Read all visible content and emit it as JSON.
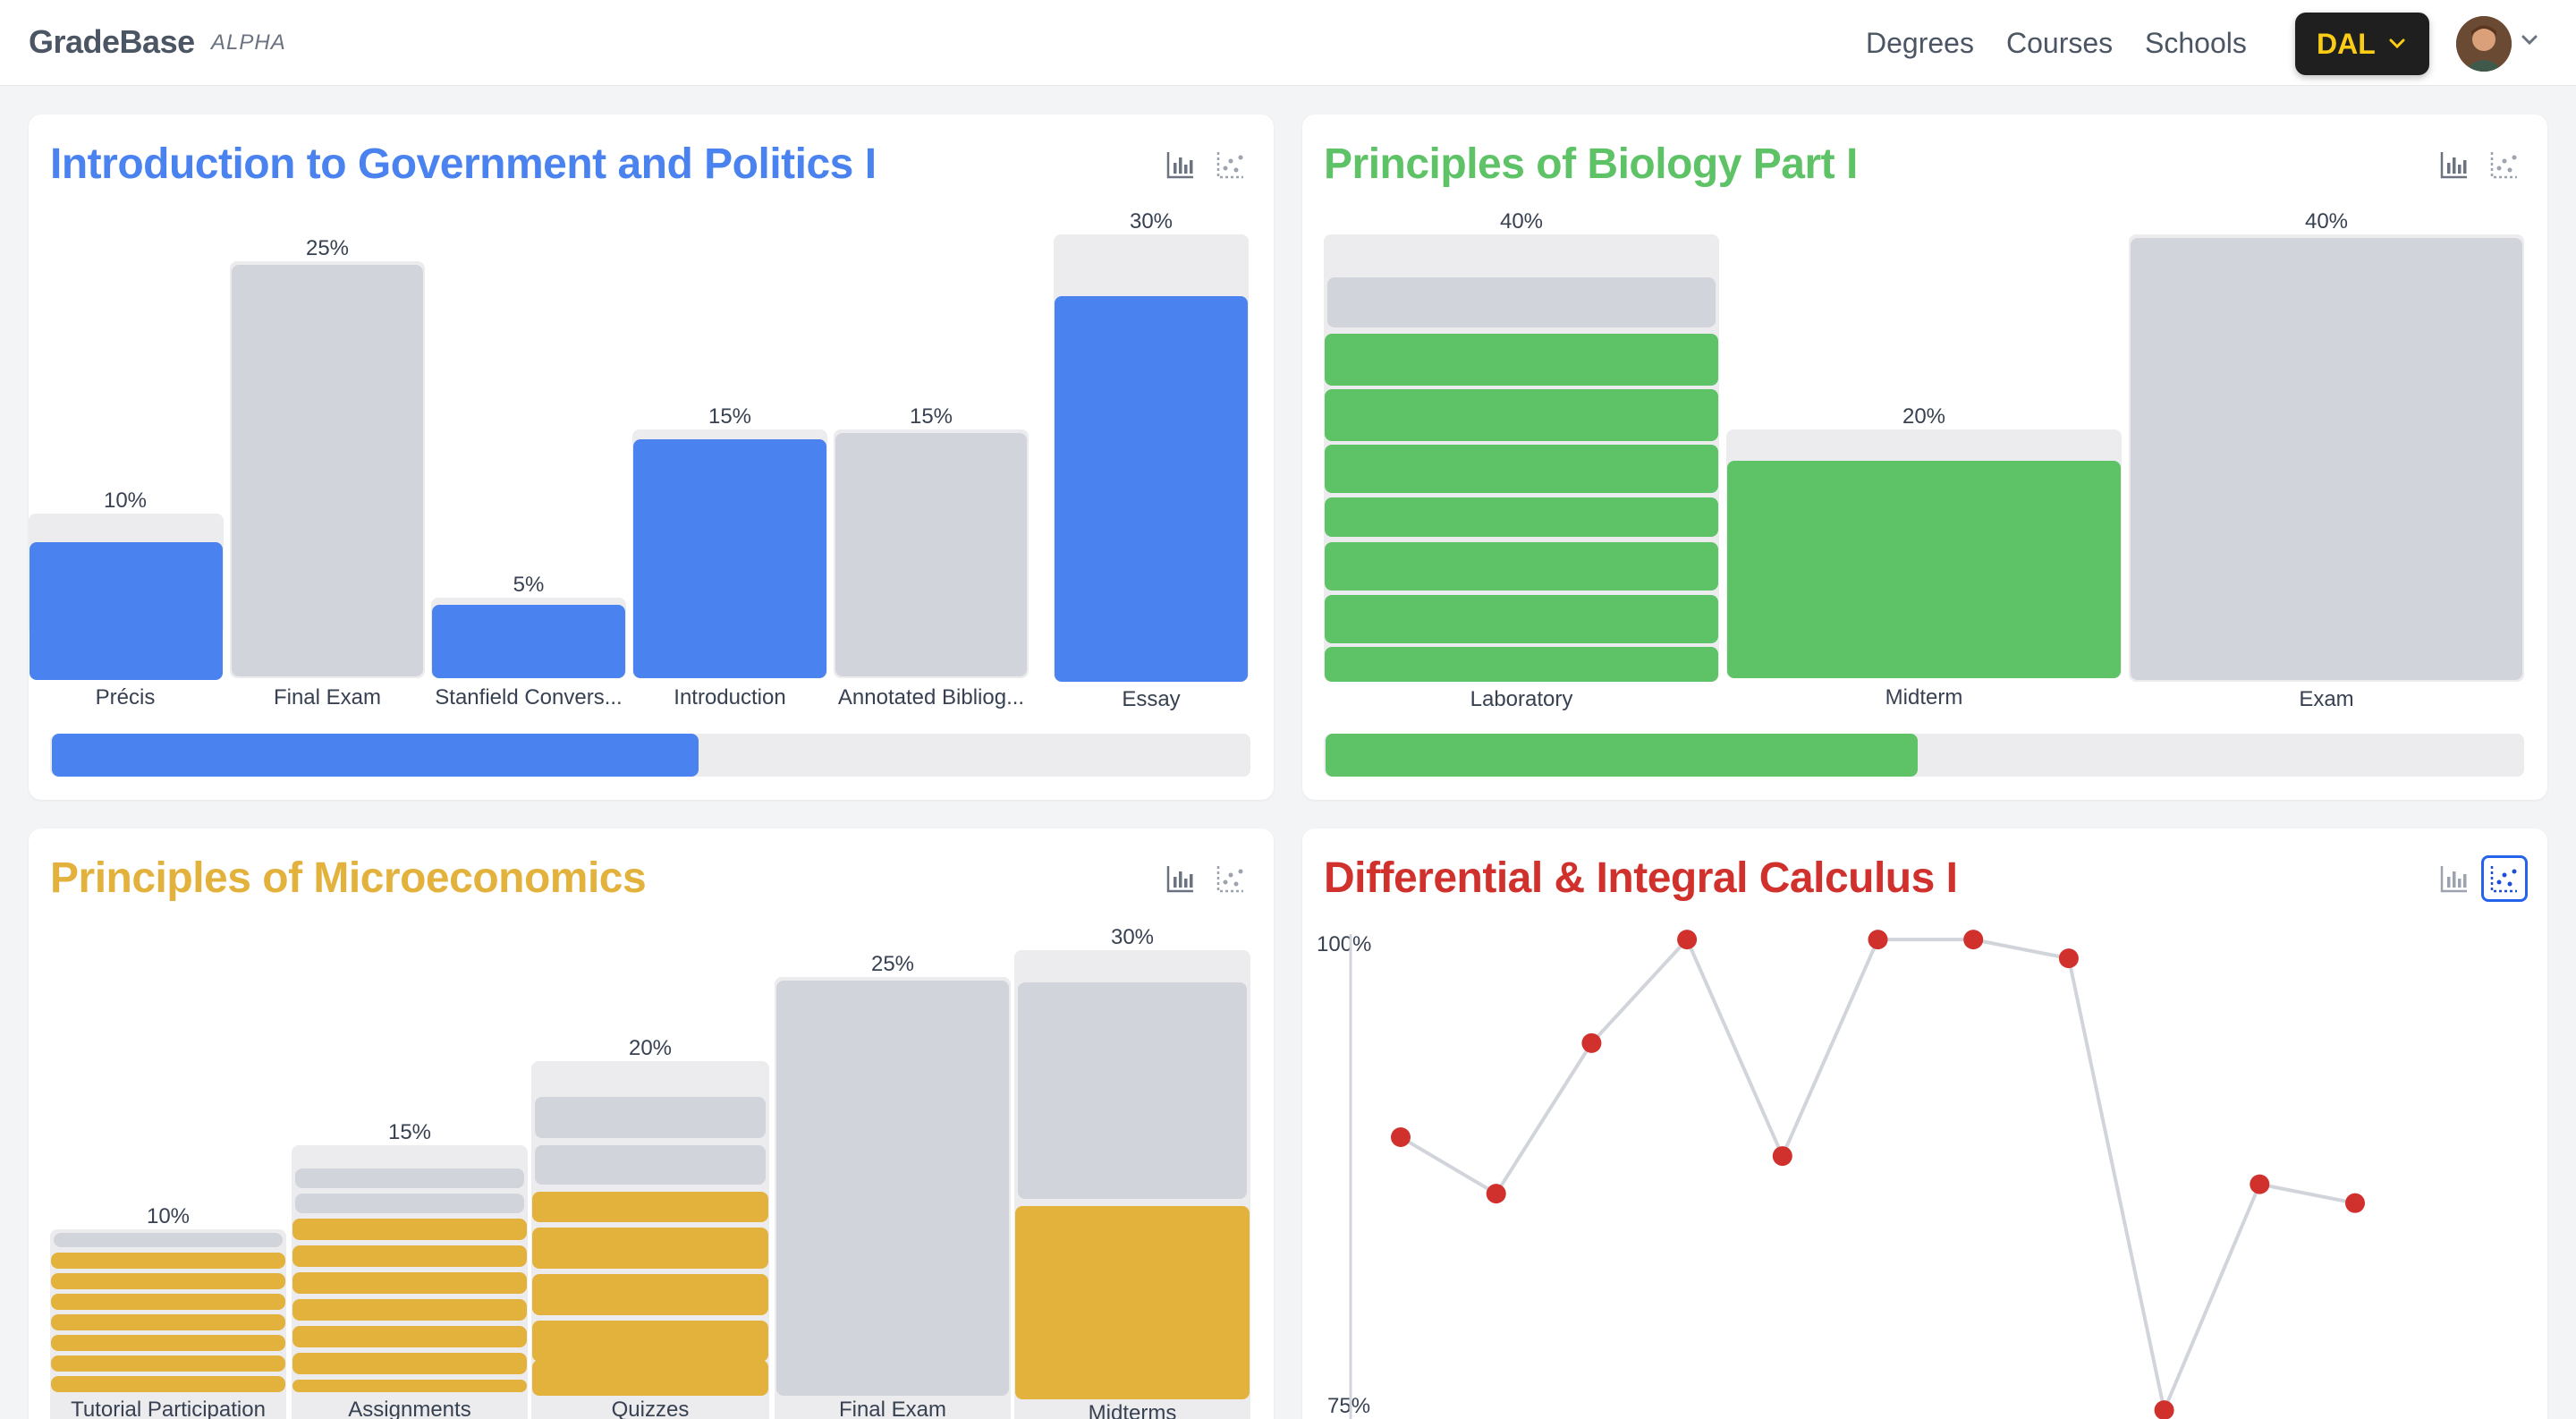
{
  "header": {
    "brand": "GradeBase",
    "brand_tag": "ALPHA",
    "nav": [
      "Degrees",
      "Courses",
      "Schools"
    ],
    "school_button": "DAL"
  },
  "icons": {
    "bar_view": "bar-chart-icon",
    "scatter_view": "scatter-chart-icon",
    "chevron": "chevron-down-icon"
  },
  "courses": [
    {
      "title": "Introduction to Government and Politics I",
      "color": "#4a82ef",
      "active_view": "bar",
      "progress": "53.88%",
      "progress_value": 0.5388,
      "components": [
        {
          "label": "Précis",
          "weight": "10%"
        },
        {
          "label": "Final Exam",
          "weight": "25%"
        },
        {
          "label": "Stanfield Convers...",
          "weight": "5%"
        },
        {
          "label": "Introduction",
          "weight": "15%"
        },
        {
          "label": "Annotated Bibliog...",
          "weight": "15%"
        },
        {
          "label": "Essay",
          "weight": "30%"
        }
      ]
    },
    {
      "title": "Principles of Biology Part I",
      "color": "#5ec266",
      "active_view": "bar",
      "progress": "49.30%",
      "progress_value": 0.493,
      "components": [
        {
          "label": "Laboratory",
          "weight": "40%"
        },
        {
          "label": "Midterm",
          "weight": "20%"
        },
        {
          "label": "Exam",
          "weight": "40%"
        }
      ]
    },
    {
      "title": "Principles of Microeconomics",
      "color": "#e2b23c",
      "active_view": "bar",
      "components": [
        {
          "label": "Tutorial Participation",
          "weight": "10%"
        },
        {
          "label": "Assignments",
          "weight": "15%"
        },
        {
          "label": "Quizzes",
          "weight": "20%"
        },
        {
          "label": "Final Exam",
          "weight": "25%"
        },
        {
          "label": "Midterms",
          "weight": "30%"
        }
      ]
    },
    {
      "title": "Differential & Integral Calculus I",
      "color": "#d0312d",
      "active_view": "scatter",
      "y_top_label": "100%",
      "y_bottom_label": "75%"
    }
  ],
  "chart_data": {
    "type": "scatter",
    "title": "Differential & Integral Calculus I",
    "xlabel": "",
    "ylabel": "",
    "ylim": [
      75,
      100
    ],
    "grid": false,
    "series": [
      {
        "values": [
          89.4,
          86.4,
          94.4,
          99.9,
          88.4,
          99.9,
          99.9,
          98.9,
          74.9,
          86.9,
          85.9
        ]
      }
    ]
  }
}
